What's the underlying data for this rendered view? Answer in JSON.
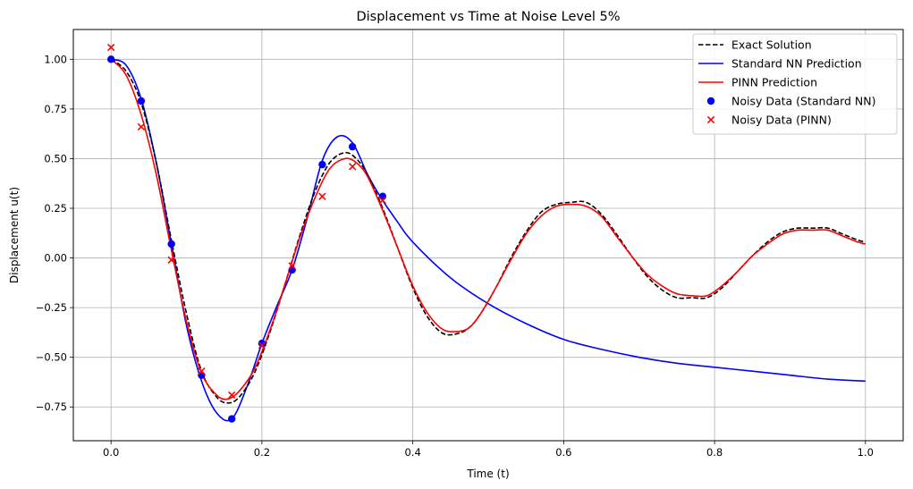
{
  "chart_data": {
    "type": "line",
    "title": "Displacement vs Time at Noise Level 5%",
    "xlabel": "Time (t)",
    "ylabel": "Displacement u(t)",
    "xlim": [
      -0.05,
      1.05
    ],
    "ylim": [
      -0.92,
      1.15
    ],
    "grid": true,
    "legend_position": "top-right",
    "xticks": [
      {
        "value": 0.0,
        "label": "0.0"
      },
      {
        "value": 0.2,
        "label": "0.2"
      },
      {
        "value": 0.4,
        "label": "0.4"
      },
      {
        "value": 0.6,
        "label": "0.6"
      },
      {
        "value": 0.8,
        "label": "0.8"
      },
      {
        "value": 1.0,
        "label": "1.0"
      }
    ],
    "yticks": [
      {
        "value": 1.0,
        "label": "1.00"
      },
      {
        "value": 0.75,
        "label": "0.75"
      },
      {
        "value": 0.5,
        "label": "0.50"
      },
      {
        "value": 0.25,
        "label": "0.25"
      },
      {
        "value": 0.0,
        "label": "0.00"
      },
      {
        "value": -0.25,
        "label": "−0.25"
      },
      {
        "value": -0.5,
        "label": "−0.50"
      },
      {
        "value": -0.75,
        "label": "−0.75"
      }
    ],
    "series": [
      {
        "name": "Exact Solution",
        "kind": "line",
        "style": "dashed",
        "color": "#000000",
        "x": [
          0.0,
          0.02,
          0.04,
          0.06,
          0.08,
          0.1,
          0.12,
          0.14,
          0.155,
          0.17,
          0.19,
          0.21,
          0.23,
          0.25,
          0.27,
          0.29,
          0.31,
          0.325,
          0.34,
          0.36,
          0.38,
          0.4,
          0.42,
          0.44,
          0.46,
          0.475,
          0.49,
          0.51,
          0.53,
          0.55,
          0.57,
          0.59,
          0.61,
          0.63,
          0.65,
          0.67,
          0.69,
          0.71,
          0.73,
          0.75,
          0.77,
          0.79,
          0.81,
          0.83,
          0.85,
          0.87,
          0.89,
          0.91,
          0.93,
          0.95,
          0.97,
          0.99,
          1.0
        ],
        "values": [
          1.0,
          0.94,
          0.78,
          0.48,
          0.09,
          -0.28,
          -0.57,
          -0.7,
          -0.73,
          -0.7,
          -0.58,
          -0.38,
          -0.14,
          0.11,
          0.33,
          0.48,
          0.53,
          0.5,
          0.42,
          0.25,
          0.05,
          -0.15,
          -0.3,
          -0.38,
          -0.38,
          -0.35,
          -0.28,
          -0.15,
          0.0,
          0.13,
          0.23,
          0.27,
          0.28,
          0.28,
          0.22,
          0.12,
          0.01,
          -0.09,
          -0.16,
          -0.2,
          -0.2,
          -0.2,
          -0.15,
          -0.07,
          0.01,
          0.08,
          0.13,
          0.15,
          0.15,
          0.15,
          0.12,
          0.09,
          0.08
        ]
      },
      {
        "name": "Standard NN Prediction",
        "kind": "line",
        "style": "solid",
        "color": "#0000ff",
        "x": [
          0.0,
          0.02,
          0.04,
          0.06,
          0.08,
          0.1,
          0.12,
          0.14,
          0.16,
          0.18,
          0.2,
          0.22,
          0.24,
          0.26,
          0.28,
          0.3,
          0.32,
          0.34,
          0.36,
          0.38,
          0.4,
          0.45,
          0.5,
          0.55,
          0.6,
          0.65,
          0.7,
          0.75,
          0.8,
          0.85,
          0.9,
          0.95,
          1.0
        ],
        "values": [
          1.0,
          0.97,
          0.8,
          0.48,
          0.07,
          -0.34,
          -0.62,
          -0.78,
          -0.81,
          -0.65,
          -0.43,
          -0.24,
          -0.06,
          0.2,
          0.49,
          0.61,
          0.58,
          0.42,
          0.29,
          0.18,
          0.08,
          -0.1,
          -0.23,
          -0.33,
          -0.41,
          -0.46,
          -0.5,
          -0.53,
          -0.55,
          -0.57,
          -0.59,
          -0.61,
          -0.62
        ]
      },
      {
        "name": "PINN Prediction",
        "kind": "line",
        "style": "solid",
        "color": "#ff0000",
        "x": [
          0.0,
          0.02,
          0.04,
          0.06,
          0.08,
          0.1,
          0.12,
          0.14,
          0.155,
          0.17,
          0.19,
          0.21,
          0.23,
          0.25,
          0.27,
          0.29,
          0.31,
          0.325,
          0.34,
          0.36,
          0.38,
          0.4,
          0.42,
          0.44,
          0.46,
          0.475,
          0.49,
          0.51,
          0.53,
          0.55,
          0.57,
          0.59,
          0.61,
          0.63,
          0.65,
          0.67,
          0.69,
          0.71,
          0.73,
          0.75,
          0.77,
          0.79,
          0.81,
          0.83,
          0.85,
          0.87,
          0.89,
          0.91,
          0.93,
          0.95,
          0.97,
          0.99,
          1.0
        ],
        "values": [
          1.0,
          0.92,
          0.72,
          0.42,
          0.04,
          -0.32,
          -0.58,
          -0.69,
          -0.71,
          -0.67,
          -0.56,
          -0.37,
          -0.14,
          0.1,
          0.3,
          0.45,
          0.5,
          0.48,
          0.41,
          0.24,
          0.05,
          -0.14,
          -0.28,
          -0.36,
          -0.37,
          -0.35,
          -0.28,
          -0.15,
          -0.01,
          0.12,
          0.21,
          0.26,
          0.27,
          0.26,
          0.21,
          0.11,
          0.01,
          -0.08,
          -0.14,
          -0.18,
          -0.19,
          -0.19,
          -0.14,
          -0.07,
          0.01,
          0.07,
          0.12,
          0.14,
          0.14,
          0.14,
          0.11,
          0.08,
          0.07
        ]
      },
      {
        "name": "Noisy Data (Standard NN)",
        "kind": "scatter",
        "marker": "circle",
        "color": "#0000ff",
        "x": [
          0.0,
          0.04,
          0.08,
          0.12,
          0.16,
          0.2,
          0.24,
          0.28,
          0.32,
          0.36
        ],
        "values": [
          1.0,
          0.79,
          0.07,
          -0.59,
          -0.81,
          -0.43,
          -0.06,
          0.47,
          0.56,
          0.31
        ]
      },
      {
        "name": "Noisy Data (PINN)",
        "kind": "scatter",
        "marker": "x",
        "color": "#ff0000",
        "x": [
          0.0,
          0.04,
          0.08,
          0.12,
          0.16,
          0.2,
          0.24,
          0.28,
          0.32,
          0.36
        ],
        "values": [
          1.06,
          0.66,
          -0.01,
          -0.57,
          -0.69,
          -0.44,
          -0.04,
          0.31,
          0.46,
          0.29
        ]
      }
    ]
  }
}
